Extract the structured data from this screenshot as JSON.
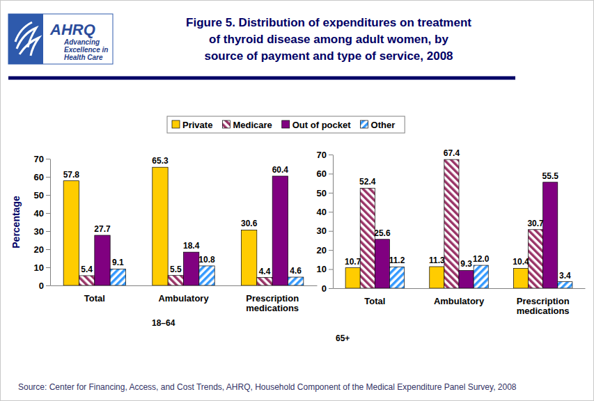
{
  "title": "Figure 5. Distribution of expenditures on treatment\nof thyroid disease among adult women, by\nsource of payment and type of service, 2008",
  "logo": [
    "AHRQ",
    "Advancing",
    "Excellence in",
    "Health Care"
  ],
  "source": "Source: Center for Financing, Access, and Cost Trends, AHRQ, Household Component of the Medical Expenditure Panel Survey, 2008",
  "chart_data": [
    {
      "type": "bar",
      "subtitle": "18–64",
      "ylabel": "Percentage",
      "categories": [
        "Total",
        "Ambulatory",
        "Prescription medications"
      ],
      "series": [
        {
          "name": "Private",
          "color": "#FFCC00",
          "values": [
            57.8,
            65.3,
            30.6
          ]
        },
        {
          "name": "Medicare",
          "color": "#993366",
          "values": [
            5.4,
            5.5,
            4.4
          ]
        },
        {
          "name": "Out of pocket",
          "color": "#800080",
          "values": [
            27.7,
            18.4,
            60.4
          ]
        },
        {
          "name": "Other",
          "color": "#3399FF",
          "values": [
            9.1,
            10.8,
            4.6
          ]
        }
      ],
      "ylim": [
        0,
        70
      ],
      "yticks": [
        0,
        10,
        20,
        30,
        40,
        50,
        60,
        70
      ],
      "data_labels": true,
      "legend": "top"
    },
    {
      "type": "bar",
      "subtitle": "65+",
      "categories": [
        "Total",
        "Ambulatory",
        "Prescription medications"
      ],
      "series": [
        {
          "color": "#FFCC00",
          "values": [
            10.7,
            11.3,
            10.4
          ]
        },
        {
          "color": "#993366",
          "values": [
            52.4,
            67.4,
            30.7
          ]
        },
        {
          "color": "#800080",
          "values": [
            25.6,
            9.3,
            55.5
          ]
        },
        {
          "color": "#3399FF",
          "values": [
            11.2,
            12.0,
            3.4
          ],
          "value_labels": [
            "11.2",
            "12.0",
            "3.4"
          ]
        }
      ],
      "ylim": [
        0,
        70
      ],
      "yticks": [
        0,
        10,
        20,
        30,
        40,
        50,
        60,
        70
      ],
      "data_labels": true
    }
  ]
}
